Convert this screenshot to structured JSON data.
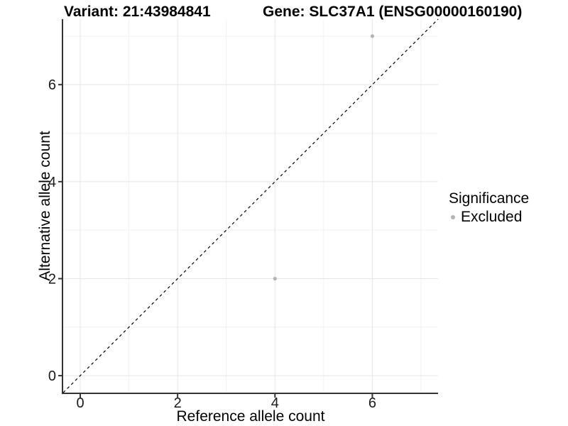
{
  "chart_data": {
    "type": "scatter",
    "title_left": "Variant: 21:43984841",
    "title_right": "Gene: SLC37A1 (ENSG00000160190)",
    "xlabel": "Reference allele count",
    "ylabel": "Alternative allele count",
    "xlim": [
      -0.35,
      7.35
    ],
    "ylim": [
      -0.35,
      7.35
    ],
    "x_ticks": [
      0,
      2,
      4,
      6
    ],
    "y_ticks": [
      0,
      2,
      4,
      6
    ],
    "x_minor_ticks": [
      1,
      3,
      5,
      7
    ],
    "y_minor_ticks": [
      1,
      3,
      5,
      7
    ],
    "grid": true,
    "series": [
      {
        "name": "Excluded",
        "color": "#b3b3b3",
        "points": [
          {
            "x": 4,
            "y": 2
          },
          {
            "x": 6,
            "y": 7
          }
        ]
      }
    ],
    "reference_line": {
      "type": "identity",
      "slope": 1,
      "intercept": 0,
      "style": "dashed",
      "color": "#000000"
    },
    "legend": {
      "title": "Significance",
      "position": "right",
      "entries": [
        {
          "label": "Excluded",
          "color": "#b3b3b3"
        }
      ]
    },
    "colors": {
      "axis_line": "#333333",
      "grid_major": "#e5e5e5",
      "grid_minor": "#f0f0f0",
      "tick_text": "#1a1a1a",
      "background": "#ffffff"
    }
  }
}
